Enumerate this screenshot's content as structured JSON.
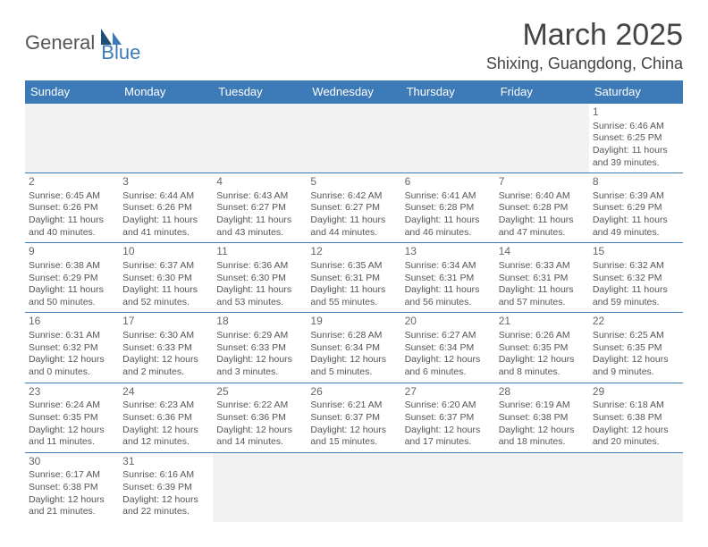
{
  "logo": {
    "part1": "General",
    "part2": "Blue"
  },
  "title": "March 2025",
  "location": "Shixing, Guangdong, China",
  "colors": {
    "header_bg": "#3d7bb8",
    "border": "#3d7bb8",
    "empty_bg": "#f2f2f2",
    "page_bg": "#ffffff",
    "text": "#555555"
  },
  "weekdays": [
    "Sunday",
    "Monday",
    "Tuesday",
    "Wednesday",
    "Thursday",
    "Friday",
    "Saturday"
  ],
  "weeks": [
    [
      {
        "empty": true
      },
      {
        "empty": true
      },
      {
        "empty": true
      },
      {
        "empty": true
      },
      {
        "empty": true
      },
      {
        "empty": true
      },
      {
        "day": "1",
        "sunrise": "Sunrise: 6:46 AM",
        "sunset": "Sunset: 6:25 PM",
        "daylight1": "Daylight: 11 hours",
        "daylight2": "and 39 minutes."
      }
    ],
    [
      {
        "day": "2",
        "sunrise": "Sunrise: 6:45 AM",
        "sunset": "Sunset: 6:26 PM",
        "daylight1": "Daylight: 11 hours",
        "daylight2": "and 40 minutes."
      },
      {
        "day": "3",
        "sunrise": "Sunrise: 6:44 AM",
        "sunset": "Sunset: 6:26 PM",
        "daylight1": "Daylight: 11 hours",
        "daylight2": "and 41 minutes."
      },
      {
        "day": "4",
        "sunrise": "Sunrise: 6:43 AM",
        "sunset": "Sunset: 6:27 PM",
        "daylight1": "Daylight: 11 hours",
        "daylight2": "and 43 minutes."
      },
      {
        "day": "5",
        "sunrise": "Sunrise: 6:42 AM",
        "sunset": "Sunset: 6:27 PM",
        "daylight1": "Daylight: 11 hours",
        "daylight2": "and 44 minutes."
      },
      {
        "day": "6",
        "sunrise": "Sunrise: 6:41 AM",
        "sunset": "Sunset: 6:28 PM",
        "daylight1": "Daylight: 11 hours",
        "daylight2": "and 46 minutes."
      },
      {
        "day": "7",
        "sunrise": "Sunrise: 6:40 AM",
        "sunset": "Sunset: 6:28 PM",
        "daylight1": "Daylight: 11 hours",
        "daylight2": "and 47 minutes."
      },
      {
        "day": "8",
        "sunrise": "Sunrise: 6:39 AM",
        "sunset": "Sunset: 6:29 PM",
        "daylight1": "Daylight: 11 hours",
        "daylight2": "and 49 minutes."
      }
    ],
    [
      {
        "day": "9",
        "sunrise": "Sunrise: 6:38 AM",
        "sunset": "Sunset: 6:29 PM",
        "daylight1": "Daylight: 11 hours",
        "daylight2": "and 50 minutes."
      },
      {
        "day": "10",
        "sunrise": "Sunrise: 6:37 AM",
        "sunset": "Sunset: 6:30 PM",
        "daylight1": "Daylight: 11 hours",
        "daylight2": "and 52 minutes."
      },
      {
        "day": "11",
        "sunrise": "Sunrise: 6:36 AM",
        "sunset": "Sunset: 6:30 PM",
        "daylight1": "Daylight: 11 hours",
        "daylight2": "and 53 minutes."
      },
      {
        "day": "12",
        "sunrise": "Sunrise: 6:35 AM",
        "sunset": "Sunset: 6:31 PM",
        "daylight1": "Daylight: 11 hours",
        "daylight2": "and 55 minutes."
      },
      {
        "day": "13",
        "sunrise": "Sunrise: 6:34 AM",
        "sunset": "Sunset: 6:31 PM",
        "daylight1": "Daylight: 11 hours",
        "daylight2": "and 56 minutes."
      },
      {
        "day": "14",
        "sunrise": "Sunrise: 6:33 AM",
        "sunset": "Sunset: 6:31 PM",
        "daylight1": "Daylight: 11 hours",
        "daylight2": "and 57 minutes."
      },
      {
        "day": "15",
        "sunrise": "Sunrise: 6:32 AM",
        "sunset": "Sunset: 6:32 PM",
        "daylight1": "Daylight: 11 hours",
        "daylight2": "and 59 minutes."
      }
    ],
    [
      {
        "day": "16",
        "sunrise": "Sunrise: 6:31 AM",
        "sunset": "Sunset: 6:32 PM",
        "daylight1": "Daylight: 12 hours",
        "daylight2": "and 0 minutes."
      },
      {
        "day": "17",
        "sunrise": "Sunrise: 6:30 AM",
        "sunset": "Sunset: 6:33 PM",
        "daylight1": "Daylight: 12 hours",
        "daylight2": "and 2 minutes."
      },
      {
        "day": "18",
        "sunrise": "Sunrise: 6:29 AM",
        "sunset": "Sunset: 6:33 PM",
        "daylight1": "Daylight: 12 hours",
        "daylight2": "and 3 minutes."
      },
      {
        "day": "19",
        "sunrise": "Sunrise: 6:28 AM",
        "sunset": "Sunset: 6:34 PM",
        "daylight1": "Daylight: 12 hours",
        "daylight2": "and 5 minutes."
      },
      {
        "day": "20",
        "sunrise": "Sunrise: 6:27 AM",
        "sunset": "Sunset: 6:34 PM",
        "daylight1": "Daylight: 12 hours",
        "daylight2": "and 6 minutes."
      },
      {
        "day": "21",
        "sunrise": "Sunrise: 6:26 AM",
        "sunset": "Sunset: 6:35 PM",
        "daylight1": "Daylight: 12 hours",
        "daylight2": "and 8 minutes."
      },
      {
        "day": "22",
        "sunrise": "Sunrise: 6:25 AM",
        "sunset": "Sunset: 6:35 PM",
        "daylight1": "Daylight: 12 hours",
        "daylight2": "and 9 minutes."
      }
    ],
    [
      {
        "day": "23",
        "sunrise": "Sunrise: 6:24 AM",
        "sunset": "Sunset: 6:35 PM",
        "daylight1": "Daylight: 12 hours",
        "daylight2": "and 11 minutes."
      },
      {
        "day": "24",
        "sunrise": "Sunrise: 6:23 AM",
        "sunset": "Sunset: 6:36 PM",
        "daylight1": "Daylight: 12 hours",
        "daylight2": "and 12 minutes."
      },
      {
        "day": "25",
        "sunrise": "Sunrise: 6:22 AM",
        "sunset": "Sunset: 6:36 PM",
        "daylight1": "Daylight: 12 hours",
        "daylight2": "and 14 minutes."
      },
      {
        "day": "26",
        "sunrise": "Sunrise: 6:21 AM",
        "sunset": "Sunset: 6:37 PM",
        "daylight1": "Daylight: 12 hours",
        "daylight2": "and 15 minutes."
      },
      {
        "day": "27",
        "sunrise": "Sunrise: 6:20 AM",
        "sunset": "Sunset: 6:37 PM",
        "daylight1": "Daylight: 12 hours",
        "daylight2": "and 17 minutes."
      },
      {
        "day": "28",
        "sunrise": "Sunrise: 6:19 AM",
        "sunset": "Sunset: 6:38 PM",
        "daylight1": "Daylight: 12 hours",
        "daylight2": "and 18 minutes."
      },
      {
        "day": "29",
        "sunrise": "Sunrise: 6:18 AM",
        "sunset": "Sunset: 6:38 PM",
        "daylight1": "Daylight: 12 hours",
        "daylight2": "and 20 minutes."
      }
    ],
    [
      {
        "day": "30",
        "sunrise": "Sunrise: 6:17 AM",
        "sunset": "Sunset: 6:38 PM",
        "daylight1": "Daylight: 12 hours",
        "daylight2": "and 21 minutes."
      },
      {
        "day": "31",
        "sunrise": "Sunrise: 6:16 AM",
        "sunset": "Sunset: 6:39 PM",
        "daylight1": "Daylight: 12 hours",
        "daylight2": "and 22 minutes."
      },
      {
        "empty": true
      },
      {
        "empty": true
      },
      {
        "empty": true
      },
      {
        "empty": true
      },
      {
        "empty": true
      }
    ]
  ]
}
